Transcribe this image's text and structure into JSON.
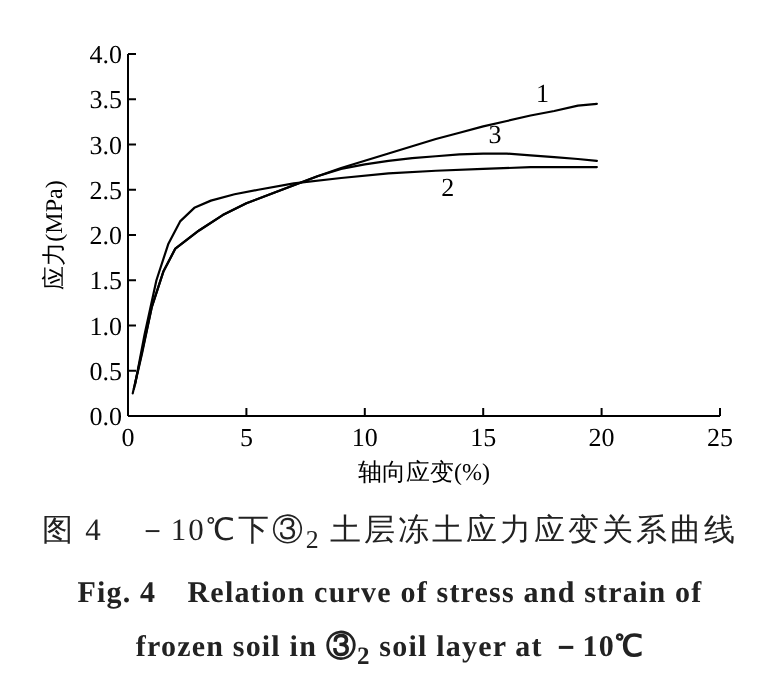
{
  "chart_data": {
    "type": "line",
    "xlabel": "轴向应变(%)",
    "ylabel": "应力(MPa)",
    "xlim": [
      0,
      25
    ],
    "ylim": [
      0,
      4
    ],
    "xticks": [
      0,
      5,
      10,
      15,
      20,
      25
    ],
    "yticks": [
      {
        "value": 0,
        "label": "0.0"
      },
      {
        "value": 0.5,
        "label": "0.5"
      },
      {
        "value": 1,
        "label": "1.0"
      },
      {
        "value": 1.5,
        "label": "1.5"
      },
      {
        "value": 2,
        "label": "2.0"
      },
      {
        "value": 2.5,
        "label": "2.5"
      },
      {
        "value": 3,
        "label": "3.0"
      },
      {
        "value": 3.5,
        "label": "3.5"
      },
      {
        "value": 4,
        "label": "4.0"
      }
    ],
    "series": [
      {
        "name": "1",
        "color": "#000000",
        "x": [
          0.2,
          0.5,
          1,
          1.5,
          2,
          3,
          4,
          5,
          6,
          7,
          8,
          9,
          10,
          11,
          12,
          13,
          14,
          15,
          16,
          17,
          18,
          19,
          19.8
        ],
        "values": [
          0.25,
          0.6,
          1.2,
          1.6,
          1.85,
          2.05,
          2.22,
          2.35,
          2.45,
          2.55,
          2.65,
          2.74,
          2.82,
          2.9,
          2.98,
          3.06,
          3.13,
          3.2,
          3.26,
          3.32,
          3.37,
          3.43,
          3.45
        ]
      },
      {
        "name": "2",
        "color": "#000000",
        "x": [
          0.3,
          0.7,
          1.2,
          1.7,
          2.2,
          2.8,
          3.5,
          4.5,
          5.5,
          7,
          9,
          11,
          13,
          15,
          17,
          19.8
        ],
        "values": [
          0.35,
          0.9,
          1.5,
          1.9,
          2.15,
          2.3,
          2.38,
          2.45,
          2.5,
          2.57,
          2.63,
          2.68,
          2.71,
          2.73,
          2.75,
          2.75
        ]
      },
      {
        "name": "3",
        "color": "#000000",
        "x": [
          0.25,
          0.6,
          1,
          1.5,
          2,
          3,
          4,
          5,
          6,
          7,
          8,
          9,
          10,
          11,
          12,
          13,
          14,
          15,
          16,
          17,
          18,
          19,
          19.8
        ],
        "values": [
          0.3,
          0.7,
          1.2,
          1.6,
          1.85,
          2.05,
          2.22,
          2.35,
          2.45,
          2.55,
          2.65,
          2.73,
          2.78,
          2.82,
          2.85,
          2.87,
          2.89,
          2.9,
          2.9,
          2.88,
          2.86,
          2.84,
          2.82
        ]
      }
    ],
    "annotations": [
      "图 4　－10℃下③$_{2}$ 土层冻土应力应变关系曲线",
      "Fig. 4　Relation curve of stress and strain of frozen soil in ③$_{2}$ soil layer at －10℃"
    ]
  }
}
